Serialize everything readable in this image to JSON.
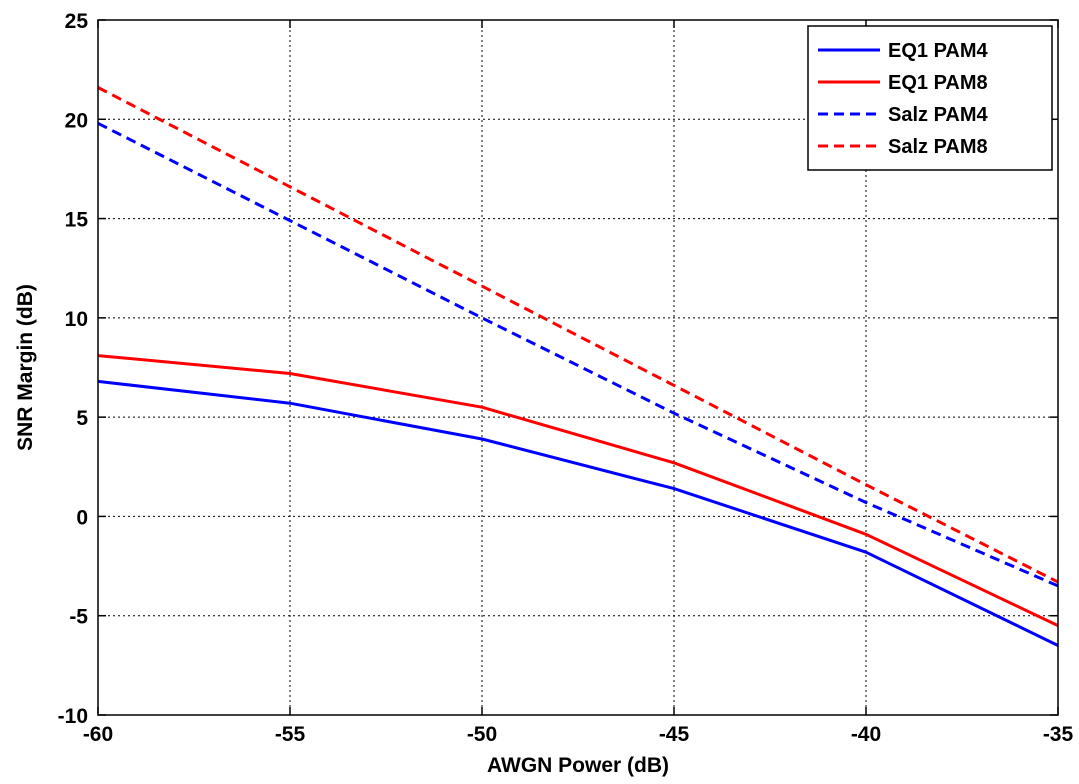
{
  "chart_data": {
    "type": "line",
    "xlabel": "AWGN Power (dB)",
    "ylabel": "SNR Margin (dB)",
    "xlim": [
      -60,
      -35
    ],
    "ylim": [
      -10,
      25
    ],
    "xticks": [
      -60,
      -55,
      -50,
      -45,
      -40,
      -35
    ],
    "yticks": [
      -10,
      -5,
      0,
      5,
      10,
      15,
      20,
      25
    ],
    "grid": true,
    "legend_position": "top-right",
    "series": [
      {
        "name": "EQ1 PAM4",
        "color": "#0000ff",
        "dash": "solid",
        "x": [
          -60,
          -55,
          -50,
          -45,
          -40,
          -35
        ],
        "y": [
          6.8,
          5.7,
          3.9,
          1.4,
          -1.8,
          -6.5
        ]
      },
      {
        "name": "EQ1 PAM8",
        "color": "#ff0000",
        "dash": "solid",
        "x": [
          -60,
          -55,
          -50,
          -45,
          -40,
          -35
        ],
        "y": [
          8.1,
          7.2,
          5.5,
          2.7,
          -0.9,
          -5.5
        ]
      },
      {
        "name": "Salz PAM4",
        "color": "#0000ff",
        "dash": "dashed",
        "x": [
          -60,
          -55,
          -50,
          -45,
          -40,
          -35
        ],
        "y": [
          19.8,
          14.9,
          10.0,
          5.2,
          0.7,
          -3.5
        ]
      },
      {
        "name": "Salz PAM8",
        "color": "#ff0000",
        "dash": "dashed",
        "x": [
          -60,
          -55,
          -50,
          -45,
          -40,
          -35
        ],
        "y": [
          21.6,
          16.6,
          11.6,
          6.6,
          1.6,
          -3.3
        ]
      }
    ]
  }
}
